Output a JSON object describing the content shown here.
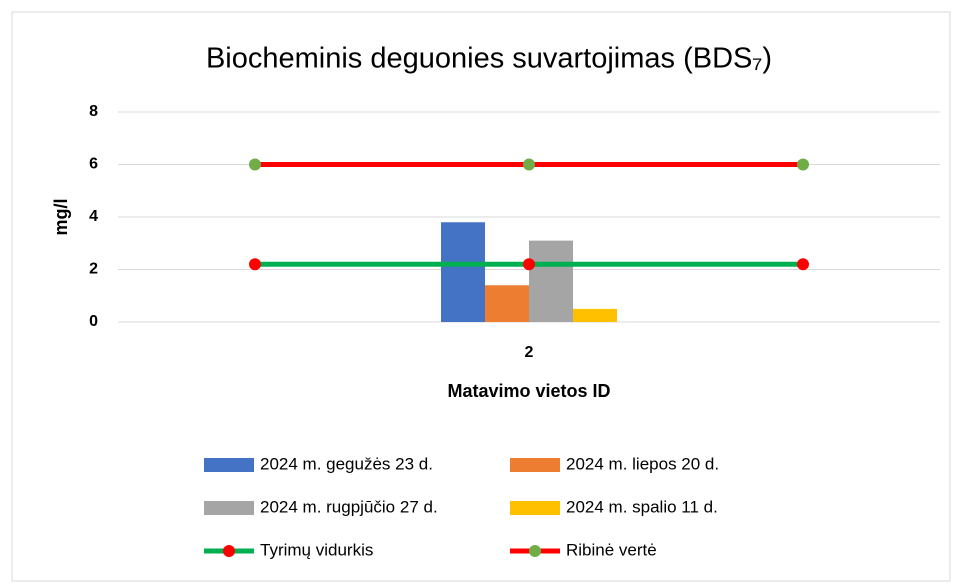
{
  "chart_data": {
    "type": "bar",
    "title": "Biocheminis deguonies suvartojimas (BDS₇)",
    "x_label": "Matavimo vietos ID",
    "y_label": "mg/l",
    "categories": [
      "2"
    ],
    "series": [
      {
        "name": "2024 m. gegužės 23 d.",
        "color": "#4472c4",
        "values": [
          3.8
        ]
      },
      {
        "name": "2024 m. liepos 20 d.",
        "color": "#ed7d31",
        "values": [
          1.4
        ]
      },
      {
        "name": "2024 m. rugpjūčio 27 d.",
        "color": "#a5a5a5",
        "values": [
          3.1
        ]
      },
      {
        "name": "2024 m. spalio 11 d.",
        "color": "#ffc000",
        "values": [
          0.5
        ]
      }
    ],
    "line_series": [
      {
        "name": "Tyrimų vidurkis",
        "color": "#00b050",
        "marker_color": "#ff0000",
        "values": [
          2.2,
          2.2,
          2.2
        ]
      },
      {
        "name": "Ribinė vertė",
        "color": "#ff0000",
        "marker_color": "#70ad47",
        "values": [
          6,
          6,
          6
        ]
      }
    ],
    "ylim": [
      0,
      8
    ],
    "yticks": [
      0,
      2,
      4,
      6,
      8
    ],
    "grid": true
  }
}
